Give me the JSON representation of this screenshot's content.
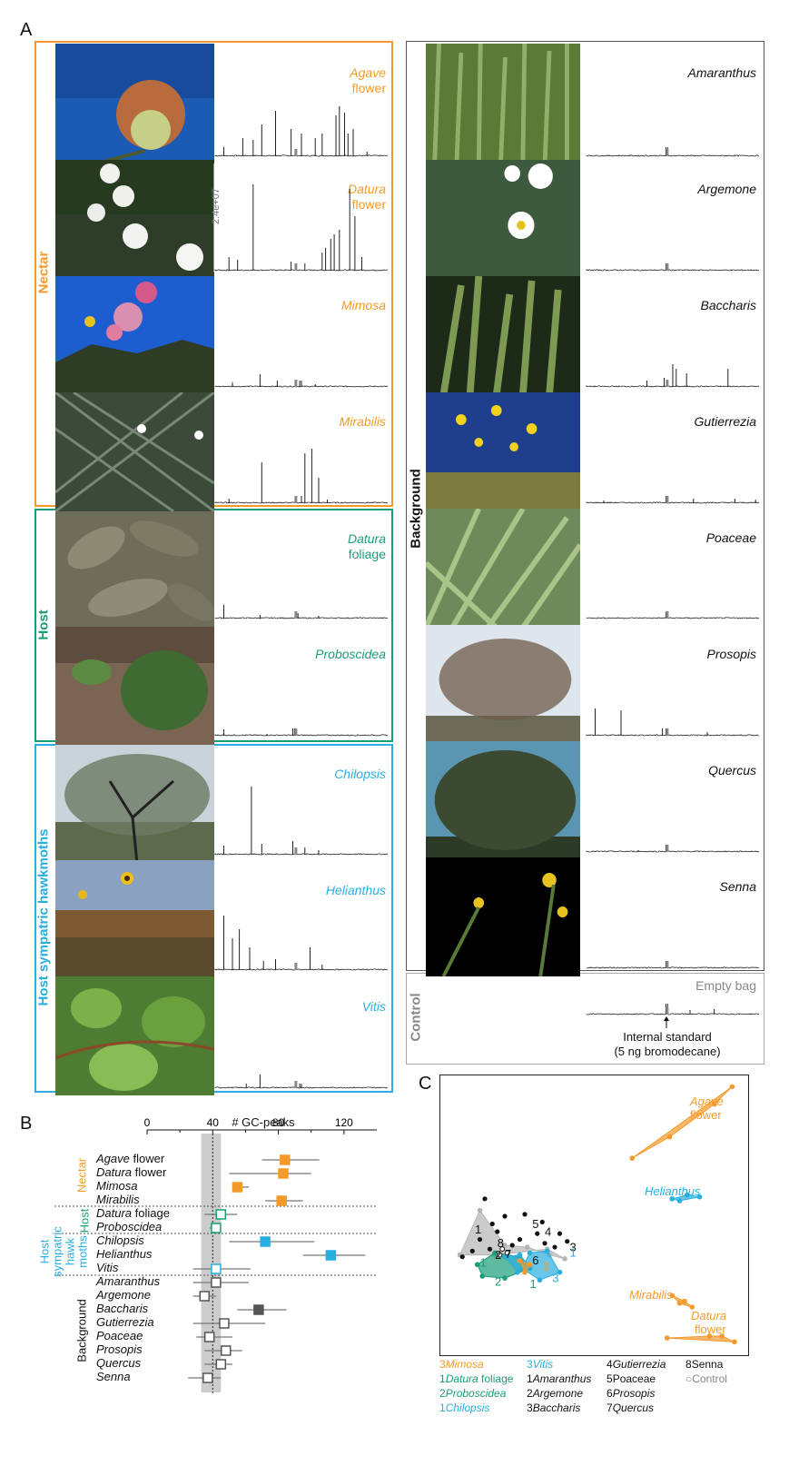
{
  "panels": {
    "a": "A",
    "b": "B",
    "c": "C"
  },
  "groups": {
    "nectar": "Nectar",
    "host": "Host",
    "sympatric": "Host sympatric hawkmoths",
    "background": "Background",
    "control": "Control"
  },
  "colors": {
    "nectar": "#f39a2b",
    "host": "#1a9e77",
    "sympatric": "#29aee0",
    "background": "#111111",
    "control": "#888888"
  },
  "left_samples": [
    {
      "l1": "Agave",
      "l2": "flower"
    },
    {
      "l1": "Datura",
      "l2": "flower"
    },
    {
      "l1": "Mimosa",
      "l2": ""
    },
    {
      "l1": "Mirabilis",
      "l2": ""
    },
    {
      "l1": "Datura",
      "l2": "foliage"
    },
    {
      "l1": "Proboscidea",
      "l2": ""
    },
    {
      "l1": "Chilopsis",
      "l2": ""
    },
    {
      "l1": "Helianthus",
      "l2": ""
    },
    {
      "l1": "Vitis",
      "l2": ""
    }
  ],
  "right_samples": [
    "Amaranthus",
    "Argemone",
    "Baccharis",
    "Gutierrezia",
    "Poaceae",
    "Prosopis",
    "Quercus",
    "Senna"
  ],
  "scale_label": "2.4e+07",
  "control": {
    "label": "Empty bag",
    "std1": "Internal standard",
    "std2": "(5 ng bromodecane)"
  },
  "panel_b": {
    "title": "# GC-peaks",
    "ticks": [
      "0",
      "40",
      "80",
      "120"
    ],
    "group_labels": {
      "nectar": "Nectar",
      "host": "Host",
      "hawk1": "Host",
      "hawk2": "sympatric",
      "hawk3": "hawk",
      "hawk4": "moths",
      "background": "Background"
    },
    "rows": [
      {
        "it": "Agave",
        "rest": " flower"
      },
      {
        "it": "Datura",
        "rest": " flower"
      },
      {
        "it": "Mimosa",
        "rest": ""
      },
      {
        "it": "Mirabilis",
        "rest": ""
      },
      {
        "it": "Datura",
        "rest": " foliage"
      },
      {
        "it": "Proboscidea",
        "rest": ""
      },
      {
        "it": "Chilopsis",
        "rest": ""
      },
      {
        "it": "Helianthus",
        "rest": ""
      },
      {
        "it": "Vitis",
        "rest": ""
      },
      {
        "it": "Amaranthus",
        "rest": ""
      },
      {
        "it": "Argemone",
        "rest": ""
      },
      {
        "it": "Baccharis",
        "rest": ""
      },
      {
        "it": "Gutierrezia",
        "rest": ""
      },
      {
        "it": "Poaceae",
        "rest": ""
      },
      {
        "it": "Prosopis",
        "rest": ""
      },
      {
        "it": "Quercus",
        "rest": ""
      },
      {
        "it": "Senna",
        "rest": ""
      }
    ]
  },
  "panel_c": {
    "labels": {
      "agave1": "Agave",
      "agave2": "flower",
      "helianthus": "Helianthus",
      "mirabilis": "Mirabilis",
      "datura1": "Datura",
      "datura2": "flower"
    },
    "legend": [
      {
        "n": "3",
        "name": "Mimosa",
        "italic": true,
        "color": "nectar"
      },
      {
        "n": "3",
        "name": "Vitis",
        "italic": true,
        "color": "sympatric"
      },
      {
        "n": "4",
        "name": "Gutierrezia",
        "italic": true,
        "color": "background"
      },
      {
        "n": "8",
        "name": "Senna",
        "italic": false,
        "color": "background"
      },
      {
        "n": "1",
        "name": "Datura",
        "extra": " foliage",
        "italic": true,
        "color": "host"
      },
      {
        "n": "1",
        "name": "Amaranthus",
        "italic": true,
        "color": "background"
      },
      {
        "n": "5",
        "name": "Poaceae",
        "italic": false,
        "color": "background"
      },
      {
        "n": "○",
        "name": "Control",
        "italic": false,
        "color": "control"
      },
      {
        "n": "2",
        "name": "Proboscidea",
        "italic": true,
        "color": "host"
      },
      {
        "n": "2",
        "name": "Argemone",
        "italic": true,
        "color": "background"
      },
      {
        "n": "6",
        "name": "Prosopis",
        "italic": true,
        "color": "background"
      },
      {
        "n": "1",
        "name": "Chilopsis",
        "italic": true,
        "color": "sympatric"
      },
      {
        "n": "3",
        "name": "Baccharis",
        "italic": true,
        "color": "background"
      },
      {
        "n": "7",
        "name": "Quercus",
        "italic": true,
        "color": "background"
      }
    ],
    "point_numbers": [
      "1",
      "8",
      "5",
      "4",
      "2",
      "7",
      "3",
      "6",
      "3",
      "1",
      "1",
      "2",
      "1",
      "3"
    ]
  },
  "chart_data": [
    {
      "type": "scatter",
      "title": "# GC-peaks",
      "xlim": [
        0,
        140
      ],
      "x_ticks": [
        0,
        40,
        80,
        120
      ],
      "reference_line": 40,
      "series": [
        {
          "name": "Nectar",
          "values": [
            {
              "label": "Agave flower",
              "mean": 84,
              "ci": [
                70,
                105
              ]
            },
            {
              "label": "Datura flower",
              "mean": 83,
              "ci": [
                50,
                100
              ]
            },
            {
              "label": "Mimosa",
              "mean": 55,
              "ci": [
                52,
                62
              ]
            },
            {
              "label": "Mirabilis",
              "mean": 82,
              "ci": [
                72,
                95
              ]
            }
          ]
        },
        {
          "name": "Host",
          "values": [
            {
              "label": "Datura foliage",
              "mean": 45,
              "ci": [
                35,
                55
              ]
            },
            {
              "label": "Proboscidea",
              "mean": 42,
              "ci": [
                38,
                45
              ]
            }
          ]
        },
        {
          "name": "Host sympatric hawkmoths",
          "values": [
            {
              "label": "Chilopsis",
              "mean": 72,
              "ci": [
                50,
                102
              ]
            },
            {
              "label": "Helianthus",
              "mean": 112,
              "ci": [
                95,
                133
              ]
            },
            {
              "label": "Vitis",
              "mean": 42,
              "ci": [
                28,
                63
              ]
            }
          ]
        },
        {
          "name": "Background",
          "values": [
            {
              "label": "Amaranthus",
              "mean": 42,
              "ci": [
                28,
                62
              ]
            },
            {
              "label": "Argemone",
              "mean": 35,
              "ci": [
                28,
                42
              ]
            },
            {
              "label": "Baccharis",
              "mean": 68,
              "ci": [
                55,
                85
              ]
            },
            {
              "label": "Gutierrezia",
              "mean": 47,
              "ci": [
                28,
                72
              ]
            },
            {
              "label": "Poaceae",
              "mean": 38,
              "ci": [
                30,
                52
              ]
            },
            {
              "label": "Prosopis",
              "mean": 48,
              "ci": [
                35,
                58
              ]
            },
            {
              "label": "Quercus",
              "mean": 45,
              "ci": [
                35,
                52
              ]
            },
            {
              "label": "Senna",
              "mean": 37,
              "ci": [
                25,
                45
              ]
            }
          ]
        }
      ]
    },
    {
      "type": "scatter",
      "series": [
        {
          "name": "Agave flower",
          "points": [
            [
              -2.5,
              6.5
            ],
            [
              -1.0,
              7.6
            ],
            [
              0.8,
              9.3
            ],
            [
              1.5,
              10.2
            ]
          ]
        },
        {
          "name": "Helianthus",
          "points": [
            [
              -0.9,
              4.4
            ],
            [
              -0.3,
              4.6
            ],
            [
              0.2,
              4.5
            ],
            [
              -0.6,
              4.3
            ]
          ]
        },
        {
          "name": "Mirabilis",
          "points": [
            [
              -0.9,
              -0.6
            ],
            [
              -0.4,
              -0.9
            ],
            [
              -0.1,
              -1.2
            ],
            [
              -0.6,
              -1.0
            ]
          ]
        },
        {
          "name": "Datura flower",
          "points": [
            [
              -1.1,
              -2.8
            ],
            [
              0.6,
              -2.7
            ],
            [
              1.1,
              -2.7
            ],
            [
              1.6,
              -3.0
            ]
          ]
        }
      ]
    }
  ]
}
